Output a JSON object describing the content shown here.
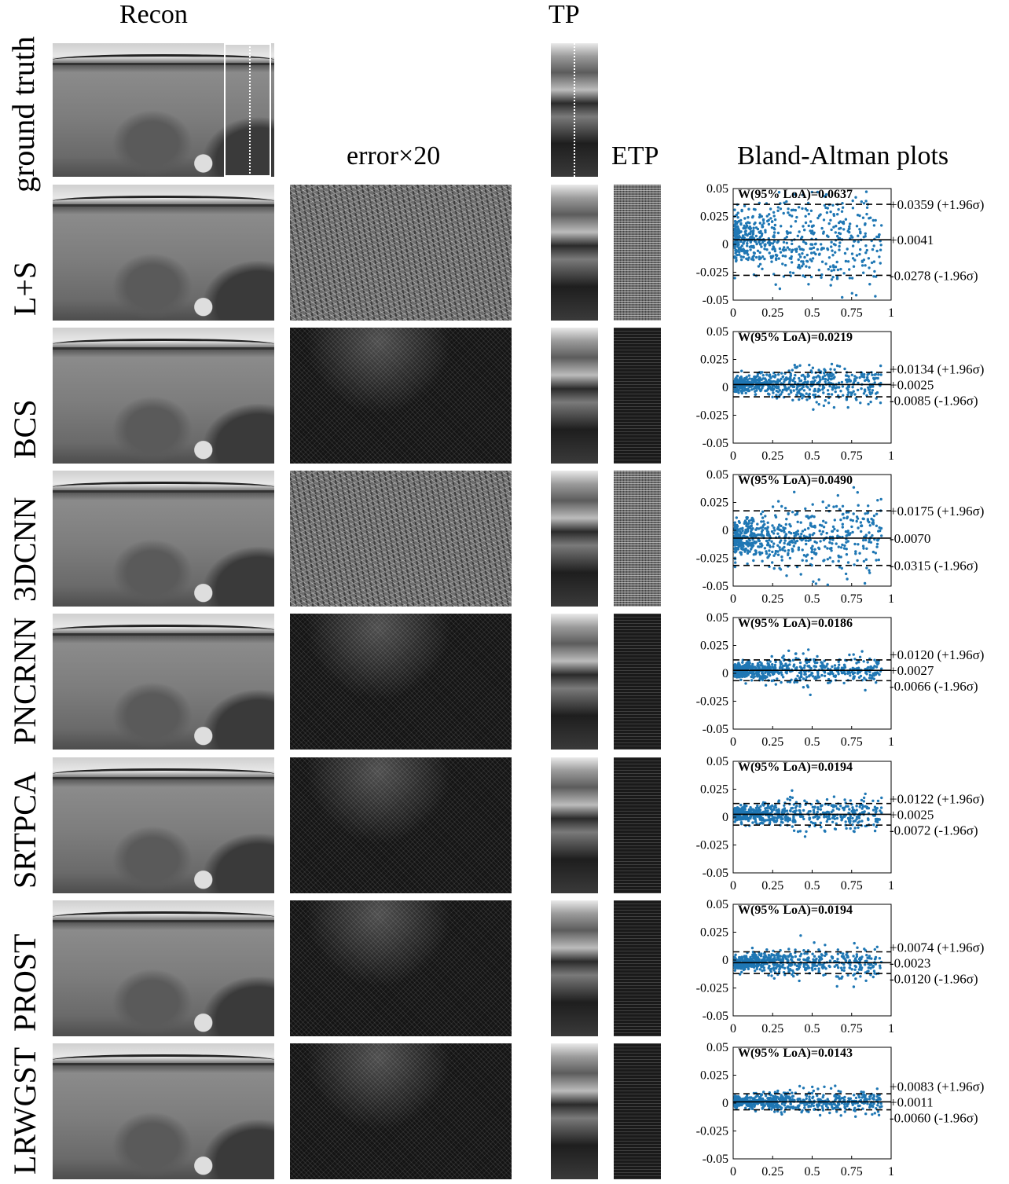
{
  "headers": {
    "recon": "Recon",
    "tp": "TP",
    "error": "error×20",
    "etp": "ETP",
    "bland_altman": "Bland-Altman plots"
  },
  "ground_truth_label": "ground truth",
  "sigma_symbol": "σ",
  "rows": [
    {
      "label": "L+S",
      "w": "W(95% LoA)=0.0637",
      "upper": "+0.0359 (+1.96σ)",
      "mean": "+0.0041",
      "lower": "-0.0278 (-1.96σ)"
    },
    {
      "label": "BCS",
      "w": "W(95% LoA)=0.0219",
      "upper": "+0.0134 (+1.96σ)",
      "mean": "+0.0025",
      "lower": "-0.0085 (-1.96σ)"
    },
    {
      "label": "3DCNN",
      "w": "W(95% LoA)=0.0490",
      "upper": "+0.0175 (+1.96σ)",
      "mean": "-0.0070",
      "lower": "-0.0315 (-1.96σ)"
    },
    {
      "label": "PNCRNN",
      "w": "W(95% LoA)=0.0186",
      "upper": "+0.0120 (+1.96σ)",
      "mean": "+0.0027",
      "lower": "-0.0066 (-1.96σ)"
    },
    {
      "label": "SRTPCA",
      "w": "W(95% LoA)=0.0194",
      "upper": "+0.0122 (+1.96σ)",
      "mean": "+0.0025",
      "lower": "-0.0072 (-1.96σ)"
    },
    {
      "label": "PROST",
      "w": "W(95% LoA)=0.0194",
      "upper": "+0.0074 (+1.96σ)",
      "mean": "-0.0023",
      "lower": "-0.0120 (-1.96σ)"
    },
    {
      "label": "LRWGST",
      "w": "W(95% LoA)=0.0143",
      "upper": "+0.0083 (+1.96σ)",
      "mean": "+0.0011",
      "lower": "-0.0060 (-1.96σ)"
    }
  ],
  "chart_data": [
    {
      "type": "scatter",
      "series": [
        {
          "name": "L+S",
          "color": "#1f77b4"
        }
      ],
      "mean": 0.0041,
      "upper": 0.0359,
      "lower": -0.0278,
      "spread": 0.016,
      "xlim": [
        0,
        1
      ],
      "ylim": [
        -0.05,
        0.05
      ],
      "x_ticks": [
        "0",
        "0.25",
        "0.5",
        "0.75",
        "1"
      ],
      "y_ticks": [
        "0.05",
        "0.025",
        "0",
        "-0.025",
        "-0.05"
      ]
    },
    {
      "type": "scatter",
      "series": [
        {
          "name": "BCS",
          "color": "#1f77b4"
        }
      ],
      "mean": 0.0025,
      "upper": 0.0134,
      "lower": -0.0085,
      "spread": 0.0056,
      "xlim": [
        0,
        1
      ],
      "ylim": [
        -0.05,
        0.05
      ],
      "x_ticks": [
        "0",
        "0.25",
        "0.5",
        "0.75",
        "1"
      ],
      "y_ticks": [
        "0.05",
        "0.025",
        "0",
        "-0.025",
        "-0.05"
      ]
    },
    {
      "type": "scatter",
      "series": [
        {
          "name": "3DCNN",
          "color": "#1f77b4"
        }
      ],
      "mean": -0.007,
      "upper": 0.0175,
      "lower": -0.0315,
      "spread": 0.0125,
      "xlim": [
        0,
        1
      ],
      "ylim": [
        -0.05,
        0.05
      ],
      "x_ticks": [
        "0",
        "0.25",
        "0.5",
        "0.75",
        "1"
      ],
      "y_ticks": [
        "0.05",
        "0.025",
        "0",
        "-0.025",
        "-0.05"
      ]
    },
    {
      "type": "scatter",
      "series": [
        {
          "name": "PNCRNN",
          "color": "#1f77b4"
        }
      ],
      "mean": 0.0027,
      "upper": 0.012,
      "lower": -0.0066,
      "spread": 0.0048,
      "xlim": [
        0,
        1
      ],
      "ylim": [
        -0.05,
        0.05
      ],
      "x_ticks": [
        "0",
        "0.25",
        "0.5",
        "0.75",
        "1"
      ],
      "y_ticks": [
        "0.05",
        "0.025",
        "0",
        "-0.025",
        "-0.05"
      ]
    },
    {
      "type": "scatter",
      "series": [
        {
          "name": "SRTPCA",
          "color": "#1f77b4"
        }
      ],
      "mean": 0.0025,
      "upper": 0.0122,
      "lower": -0.0072,
      "spread": 0.005,
      "xlim": [
        0,
        1
      ],
      "ylim": [
        -0.05,
        0.05
      ],
      "x_ticks": [
        "0",
        "0.25",
        "0.5",
        "0.75",
        "1"
      ],
      "y_ticks": [
        "0.05",
        "0.025",
        "0",
        "-0.025",
        "-0.05"
      ]
    },
    {
      "type": "scatter",
      "series": [
        {
          "name": "PROST",
          "color": "#1f77b4"
        }
      ],
      "mean": -0.0023,
      "upper": 0.0074,
      "lower": -0.012,
      "spread": 0.005,
      "xlim": [
        0,
        1
      ],
      "ylim": [
        -0.05,
        0.05
      ],
      "x_ticks": [
        "0",
        "0.25",
        "0.5",
        "0.75",
        "1"
      ],
      "y_ticks": [
        "0.05",
        "0.025",
        "0",
        "-0.025",
        "-0.05"
      ]
    },
    {
      "type": "scatter",
      "series": [
        {
          "name": "LRWGST",
          "color": "#1f77b4"
        }
      ],
      "mean": 0.0011,
      "upper": 0.0083,
      "lower": -0.006,
      "spread": 0.0037,
      "xlim": [
        0,
        1
      ],
      "ylim": [
        -0.05,
        0.05
      ],
      "x_ticks": [
        "0",
        "0.25",
        "0.5",
        "0.75",
        "1"
      ],
      "y_ticks": [
        "0.05",
        "0.025",
        "0",
        "-0.025",
        "-0.05"
      ]
    }
  ]
}
